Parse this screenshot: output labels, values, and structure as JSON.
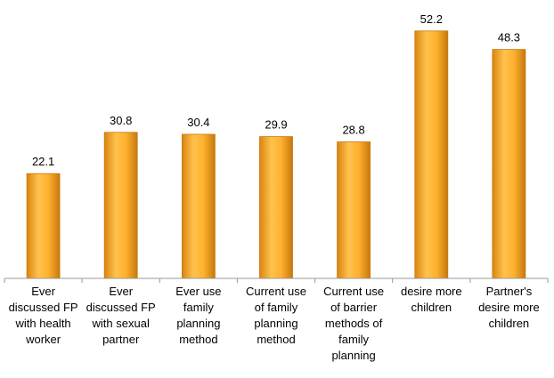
{
  "chart_data": {
    "type": "bar",
    "categories": [
      "Ever discussed FP with health worker",
      "Ever discussed FP with sexual partner",
      "Ever use family planning method",
      "Current use of family planning method",
      "Current use of barrier methods of family planning",
      "desire more children",
      "Partner's desire more children"
    ],
    "category_lines": [
      [
        "Ever",
        "discussed FP",
        "with health",
        "worker"
      ],
      [
        "Ever",
        "discussed FP",
        "with sexual",
        "partner"
      ],
      [
        "Ever use",
        "family",
        "planning",
        "method"
      ],
      [
        "Current use",
        "of family",
        "planning",
        "method"
      ],
      [
        "Current use",
        "of barrier",
        "methods of",
        "family",
        "planning"
      ],
      [
        "desire more",
        "children"
      ],
      [
        "Partner's",
        "desire more",
        "children"
      ]
    ],
    "values": [
      22.1,
      30.8,
      30.4,
      29.9,
      28.8,
      52.2,
      48.3
    ],
    "value_labels": [
      "22.1",
      "30.8",
      "30.4",
      "29.9",
      "28.8",
      "52.2",
      "48.3"
    ],
    "title": "",
    "xlabel": "",
    "ylabel": "",
    "ylim": [
      0,
      60
    ],
    "grid": false,
    "legend": "none",
    "colors": {
      "bar_light": "#ffc24d",
      "bar_mid": "#f5a623",
      "bar_dark": "#c7780e",
      "axis": "#999999",
      "text": "#000000"
    }
  }
}
